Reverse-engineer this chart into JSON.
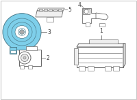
{
  "bg_color": "#ffffff",
  "border_color": "#c8c8c8",
  "horn_fill": "#7ecfea",
  "horn_edge": "#4a7a8a",
  "line_color": "#666666",
  "label_color": "#444444",
  "figsize": [
    2.0,
    1.47
  ],
  "dpi": 100,
  "xlim": [
    0,
    200
  ],
  "ylim": [
    0,
    147
  ]
}
